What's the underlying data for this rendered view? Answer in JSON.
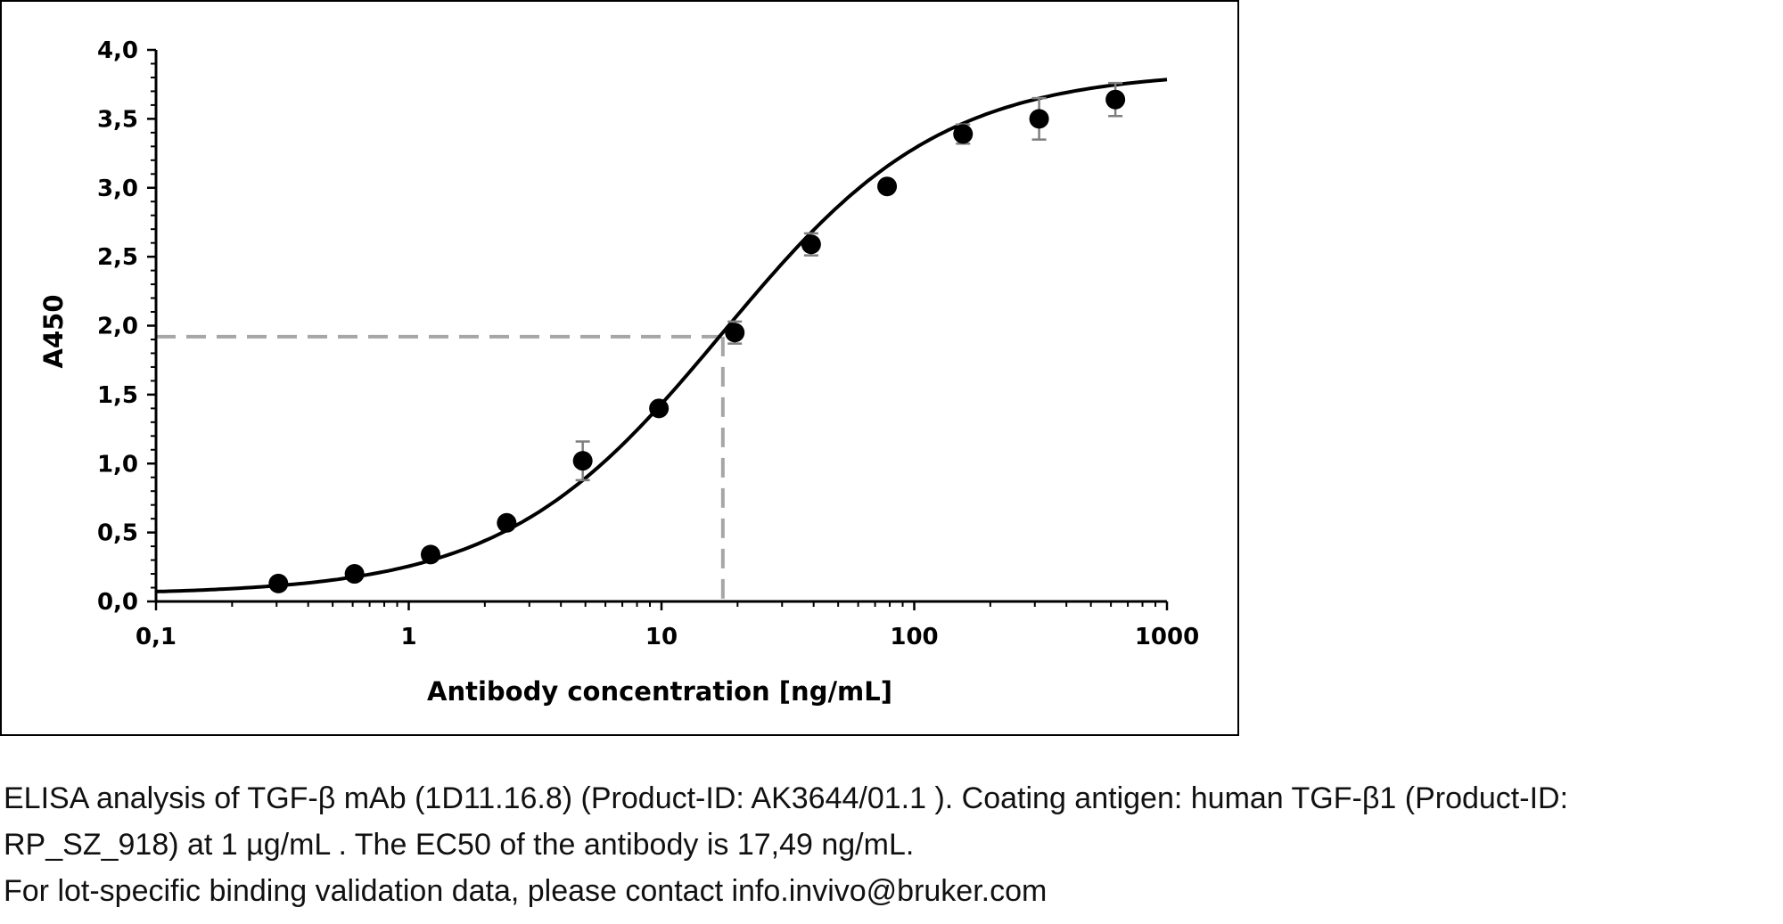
{
  "chart_data": {
    "type": "scatter",
    "xscale": "log",
    "xlim": [
      0.1,
      1000
    ],
    "ylim": [
      0,
      4.0
    ],
    "xlabel": "Antibody concentration [ng/mL]",
    "ylabel": "A450",
    "xticks": [
      {
        "value": 0.1,
        "label": "0,1"
      },
      {
        "value": 1,
        "label": "1"
      },
      {
        "value": 10,
        "label": "10"
      },
      {
        "value": 100,
        "label": "100"
      },
      {
        "value": 1000,
        "label": "1000"
      }
    ],
    "yticks": [
      {
        "value": 0,
        "label": "0,0"
      },
      {
        "value": 0.5,
        "label": "0,5"
      },
      {
        "value": 1.0,
        "label": "1,0"
      },
      {
        "value": 1.5,
        "label": "1,5"
      },
      {
        "value": 2.0,
        "label": "2,0"
      },
      {
        "value": 2.5,
        "label": "2,5"
      },
      {
        "value": 3.0,
        "label": "3,0"
      },
      {
        "value": 3.5,
        "label": "3,5"
      },
      {
        "value": 4.0,
        "label": "4,0"
      }
    ],
    "points": [
      {
        "x": 0.305,
        "y": 0.13,
        "err": 0
      },
      {
        "x": 0.61,
        "y": 0.2,
        "err": 0
      },
      {
        "x": 1.22,
        "y": 0.34,
        "err": 0
      },
      {
        "x": 2.44,
        "y": 0.57,
        "err": 0
      },
      {
        "x": 4.88,
        "y": 1.02,
        "err": 0.14
      },
      {
        "x": 9.77,
        "y": 1.4,
        "err": 0
      },
      {
        "x": 19.5,
        "y": 1.95,
        "err": 0.08
      },
      {
        "x": 39.1,
        "y": 2.59,
        "err": 0.08
      },
      {
        "x": 78.1,
        "y": 3.01,
        "err": 0
      },
      {
        "x": 156,
        "y": 3.39,
        "err": 0.07
      },
      {
        "x": 312,
        "y": 3.5,
        "err": 0.15
      },
      {
        "x": 625,
        "y": 3.64,
        "err": 0.12
      }
    ],
    "fit_curve": {
      "bottom": 0.05,
      "top": 3.85,
      "ec50": 17.49,
      "hill": 1.0
    },
    "ec50_guide": {
      "x": 17.49,
      "y": 1.92
    },
    "grid": false,
    "legend": "none",
    "colors": {
      "points": "#000000",
      "curve": "#000000",
      "error_bars": "#7f7f7f",
      "guide": "#a6a6a6"
    }
  },
  "caption": {
    "line1": "ELISA analysis of TGF-β mAb (1D11.16.8) (Product-ID: AK3644/01.1 ). Coating antigen: human TGF-β1 (Product-ID:",
    "line2": "RP_SZ_918) at 1 µg/mL . The EC50 of the antibody is 17,49 ng/mL.",
    "line3": "For lot-specific binding validation data, please contact info.invivo@bruker.com"
  }
}
